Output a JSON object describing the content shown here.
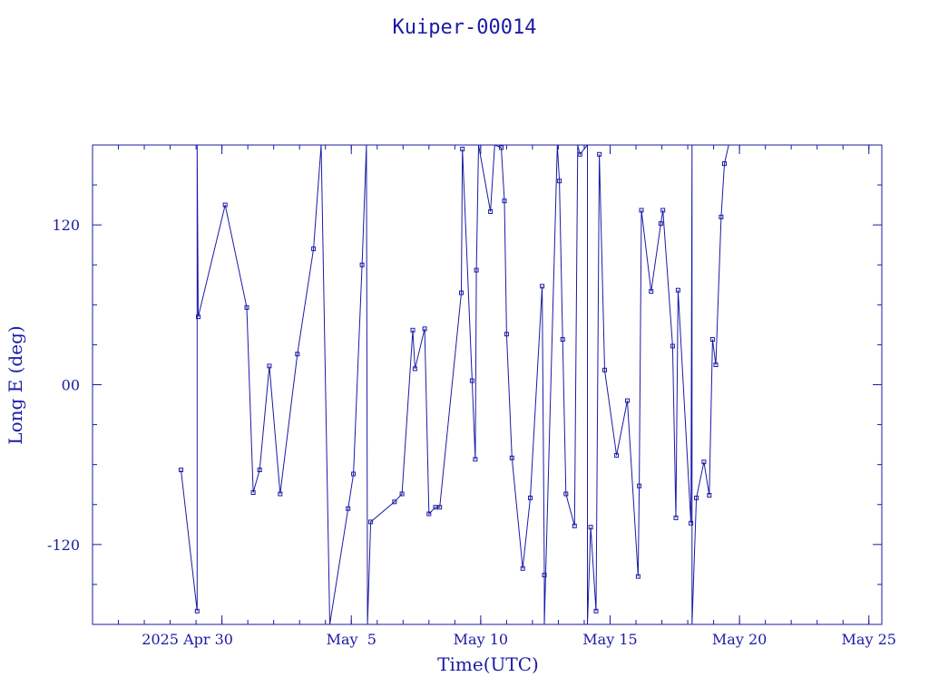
{
  "chart_data": {
    "type": "line",
    "title": "Kuiper-00014",
    "xlabel": "Time(UTC)",
    "ylabel": "Long E (deg)",
    "xlim": [
      "2025-04-25T00:00",
      "2025-05-25T12:00"
    ],
    "ylim": [
      -180,
      180
    ],
    "x_ticks": [
      {
        "label": "2025 Apr 30",
        "date": "2025-04-30T00:00"
      },
      {
        "label": "May  5",
        "date": "2025-05-05T00:00"
      },
      {
        "label": "May 10",
        "date": "2025-05-10T00:00"
      },
      {
        "label": "May 15",
        "date": "2025-05-15T00:00"
      },
      {
        "label": "May 20",
        "date": "2025-05-20T00:00"
      },
      {
        "label": "May 25",
        "date": "2025-05-25T00:00"
      }
    ],
    "y_ticks": [
      {
        "label": "120",
        "value": 120
      },
      {
        "label": "00",
        "value": 0
      },
      {
        "label": "-120",
        "value": -120
      }
    ],
    "grid": false,
    "series": [
      {
        "points": [
          [
            "2025-04-28T10:00",
            -64
          ],
          [
            "2025-04-29T01:00",
            -170
          ],
          [
            "2025-04-29T01:00",
            180
          ],
          [
            "2025-04-29T02:00",
            51
          ],
          [
            "2025-04-30T03:00",
            135
          ],
          [
            "2025-04-30T23:00",
            58
          ],
          [
            "2025-05-01T05:00",
            -81
          ],
          [
            "2025-05-01T11:00",
            -64
          ],
          [
            "2025-05-01T20:00",
            14
          ],
          [
            "2025-05-02T06:00",
            -82
          ],
          [
            "2025-05-02T22:00",
            23
          ],
          [
            "2025-05-03T13:00",
            102
          ],
          [
            "2025-05-03T20:00",
            180
          ],
          [
            "2025-05-04T04:00",
            -180
          ],
          [
            "2025-05-04T21:00",
            -93
          ],
          [
            "2025-05-05T02:00",
            -67
          ],
          [
            "2025-05-05T10:00",
            90
          ],
          [
            "2025-05-05T14:00",
            180
          ],
          [
            "2025-05-05T15:00",
            -180
          ],
          [
            "2025-05-05T18:00",
            -103
          ],
          [
            "2025-05-06T16:00",
            -88
          ],
          [
            "2025-05-06T23:00",
            -82
          ],
          [
            "2025-05-07T09:00",
            41
          ],
          [
            "2025-05-07T11:00",
            12
          ],
          [
            "2025-05-07T20:00",
            42
          ],
          [
            "2025-05-08T00:00",
            -97
          ],
          [
            "2025-05-08T06:00",
            -92
          ],
          [
            "2025-05-08T10:00",
            -92
          ],
          [
            "2025-05-09T06:00",
            69
          ],
          [
            "2025-05-09T07:00",
            177
          ],
          [
            "2025-05-09T16:00",
            3
          ],
          [
            "2025-05-09T19:00",
            -56
          ],
          [
            "2025-05-09T20:00",
            86
          ],
          [
            "2025-05-09T22:00",
            180
          ],
          [
            "2025-05-10T09:00",
            130
          ],
          [
            "2025-05-10T13:00",
            180
          ],
          [
            "2025-05-10T19:00",
            178
          ],
          [
            "2025-05-10T22:00",
            138
          ],
          [
            "2025-05-11T00:00",
            38
          ],
          [
            "2025-05-11T05:00",
            -55
          ],
          [
            "2025-05-11T15:00",
            -138
          ],
          [
            "2025-05-11T22:00",
            -85
          ],
          [
            "2025-05-12T09:00",
            74
          ],
          [
            "2025-05-12T11:00",
            -143
          ],
          [
            "2025-05-12T11:00",
            -180
          ],
          [
            "2025-05-12T23:00",
            180
          ],
          [
            "2025-05-13T01:00",
            153
          ],
          [
            "2025-05-13T04:00",
            34
          ],
          [
            "2025-05-13T07:00",
            -82
          ],
          [
            "2025-05-13T15:00",
            -106
          ],
          [
            "2025-05-13T18:00",
            180
          ],
          [
            "2025-05-13T20:00",
            173
          ],
          [
            "2025-05-14T03:00",
            180
          ],
          [
            "2025-05-14T03:00",
            -180
          ],
          [
            "2025-05-14T06:00",
            -107
          ],
          [
            "2025-05-14T11:00",
            -170
          ],
          [
            "2025-05-14T14:00",
            173
          ],
          [
            "2025-05-14T19:00",
            11
          ],
          [
            "2025-05-15T06:00",
            -53
          ],
          [
            "2025-05-15T16:00",
            -12
          ],
          [
            "2025-05-16T02:00",
            -144
          ],
          [
            "2025-05-16T03:00",
            -76
          ],
          [
            "2025-05-16T05:00",
            131
          ],
          [
            "2025-05-16T14:00",
            70
          ],
          [
            "2025-05-16T23:00",
            121
          ],
          [
            "2025-05-17T01:00",
            131
          ],
          [
            "2025-05-17T10:00",
            29
          ],
          [
            "2025-05-17T13:00",
            -100
          ],
          [
            "2025-05-17T15:00",
            71
          ],
          [
            "2025-05-18T03:00",
            -104
          ],
          [
            "2025-05-18T04:00",
            180
          ],
          [
            "2025-05-18T04:00",
            -180
          ],
          [
            "2025-05-18T08:00",
            -85
          ],
          [
            "2025-05-18T15:00",
            -58
          ],
          [
            "2025-05-18T20:00",
            -83
          ],
          [
            "2025-05-18T23:00",
            34
          ],
          [
            "2025-05-19T02:00",
            15
          ],
          [
            "2025-05-19T07:00",
            126
          ],
          [
            "2025-05-19T10:00",
            166
          ],
          [
            "2025-05-19T14:00",
            180
          ]
        ]
      }
    ]
  }
}
